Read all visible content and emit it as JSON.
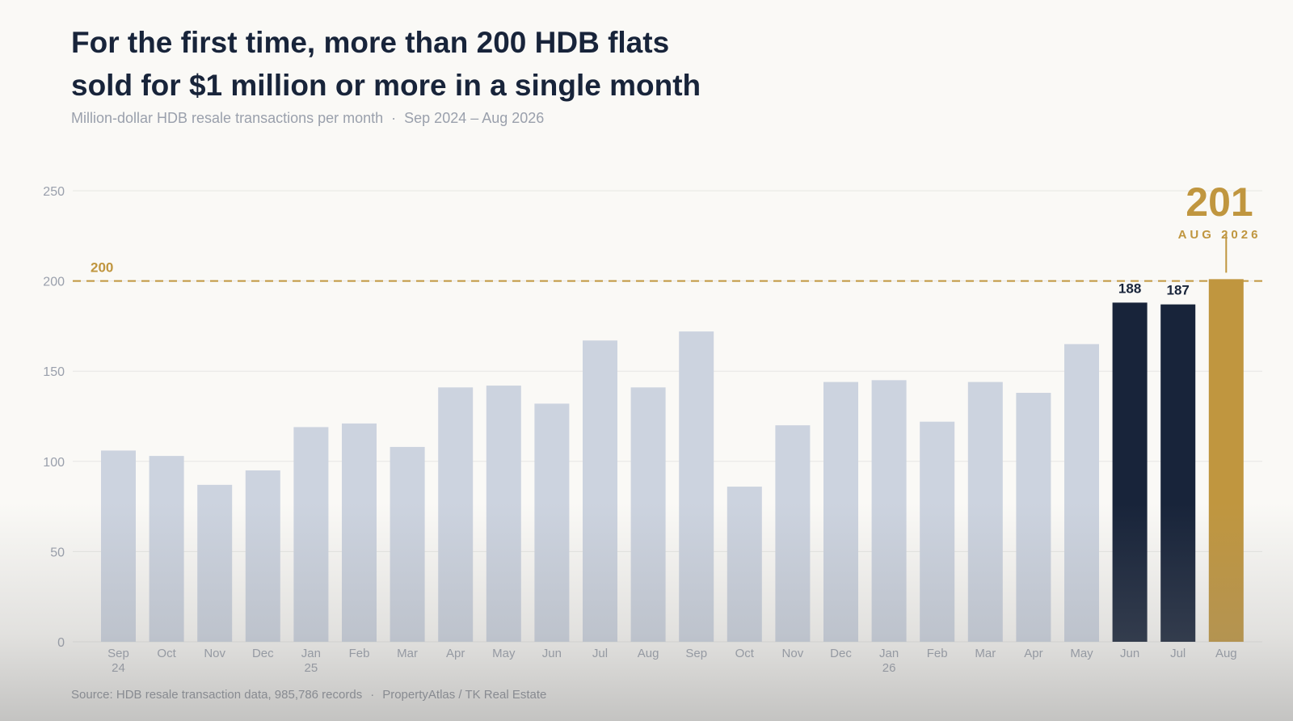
{
  "header": {
    "title_line1": "For the first time, more than 200 HDB flats",
    "title_line2": "sold for $1 million or more in a single month",
    "subtitle_measure": "Million-dollar HDB resale transactions per month",
    "subtitle_sep": "·",
    "subtitle_range": "Sep 2024 – Aug 2026"
  },
  "footer": {
    "source": "Source: HDB resale transaction data, 985,786 records",
    "sep": "·",
    "credit": "PropertyAtlas / TK Real Estate"
  },
  "chart_data": {
    "type": "bar",
    "categories": [
      [
        "Sep",
        "24"
      ],
      [
        "Oct"
      ],
      [
        "Nov"
      ],
      [
        "Dec"
      ],
      [
        "Jan",
        "25"
      ],
      [
        "Feb"
      ],
      [
        "Mar"
      ],
      [
        "Apr"
      ],
      [
        "May"
      ],
      [
        "Jun"
      ],
      [
        "Jul"
      ],
      [
        "Aug"
      ],
      [
        "Sep"
      ],
      [
        "Oct"
      ],
      [
        "Nov"
      ],
      [
        "Dec"
      ],
      [
        "Jan",
        "26"
      ],
      [
        "Feb"
      ],
      [
        "Mar"
      ],
      [
        "Apr"
      ],
      [
        "May"
      ],
      [
        "Jun"
      ],
      [
        "Jul"
      ],
      [
        "Aug"
      ]
    ],
    "values": [
      106,
      103,
      87,
      95,
      119,
      121,
      108,
      141,
      142,
      132,
      167,
      141,
      172,
      86,
      120,
      144,
      145,
      122,
      144,
      138,
      165,
      188,
      187,
      201
    ],
    "ylim": [
      0,
      250
    ],
    "yticks": [
      0,
      50,
      100,
      150,
      200,
      250
    ],
    "grid": true,
    "reference_line": {
      "value": 200,
      "label": "200",
      "color": "#c0963f"
    },
    "data_labels": [
      {
        "index": 21,
        "label": "188"
      },
      {
        "index": 22,
        "label": "187"
      }
    ],
    "highlight_callout": {
      "index": 23,
      "value_label": "201",
      "caption": "AUG 2026"
    },
    "colors": {
      "default_bar": "#ccd3df",
      "recent_bar": "#18243a",
      "highlight_bar": "#c0963f",
      "grid": "#e6e6e3",
      "tick_text": "#9aa0ac"
    },
    "recent_indices": [
      21,
      22
    ],
    "highlight_index": 23
  }
}
